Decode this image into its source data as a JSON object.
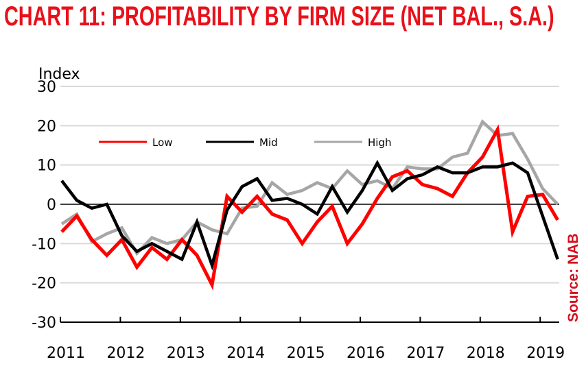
{
  "title": "CHART 11: PROFITABILITY BY FIRM SIZE (NET BAL., S.A.)",
  "source": "Source: NAB",
  "chart_data": {
    "type": "line",
    "ylabel": "Index",
    "ylim": [
      -30,
      30
    ],
    "yticks": [
      -30,
      -20,
      -10,
      0,
      10,
      20,
      30
    ],
    "xtick_labels": [
      "2011",
      "2012",
      "2013",
      "2014",
      "2015",
      "2016",
      "2017",
      "2018",
      "2019"
    ],
    "x_start": "2011 Q1",
    "frequency": "quarterly",
    "grid": true,
    "legend": "top",
    "series": [
      {
        "name": "Low",
        "color": "#ff0000",
        "values": [
          -7,
          -3,
          -9,
          -13,
          -9,
          -16,
          -11,
          -14,
          -9,
          -13,
          -20.5,
          2,
          -2,
          2,
          -2.5,
          -4,
          -10,
          -4.5,
          -0.5,
          -10,
          -5,
          1.5,
          7,
          8.5,
          5,
          4,
          2,
          8,
          12,
          19,
          -7,
          2,
          2.5,
          -4
        ]
      },
      {
        "name": "Mid",
        "color": "#000000",
        "values": [
          6,
          1,
          -1,
          0,
          -8,
          -12,
          -10,
          -12,
          -14,
          -4.5,
          -15.5,
          -1.5,
          4.5,
          6.5,
          1,
          1.5,
          0,
          -2.5,
          4.5,
          -2,
          3.5,
          10.5,
          3.5,
          6.5,
          7.5,
          9.5,
          8,
          8,
          9.5,
          9.5,
          10.5,
          8,
          -3,
          -14
        ]
      },
      {
        "name": "High",
        "color": "#a6a6a6",
        "values": [
          -5,
          -2.5,
          -9.5,
          -7.5,
          -6,
          -12.5,
          -8.5,
          -10,
          -9,
          -4.5,
          -6.5,
          -7.5,
          -1,
          -0.5,
          5.5,
          2.5,
          3.5,
          5.5,
          4,
          8.5,
          5,
          6,
          4,
          9.5,
          9,
          9,
          12,
          13,
          21,
          17.5,
          18,
          11.5,
          4,
          0
        ]
      }
    ]
  }
}
